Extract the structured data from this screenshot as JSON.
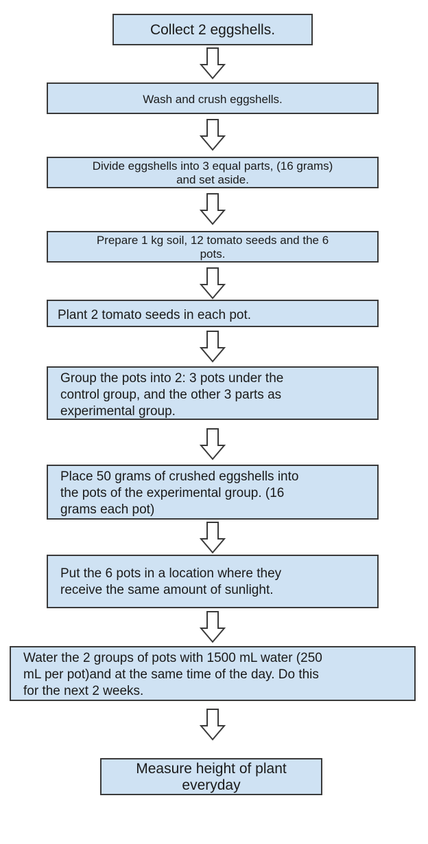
{
  "flowchart": {
    "steps": [
      "Collect 2 eggshells.",
      "Wash and crush eggshells.",
      "Divide eggshells into 3 equal parts, (16 grams)\nand set aside.",
      "Prepare 1 kg soil, 12 tomato seeds and the 6\npots.",
      "Plant 2 tomato seeds in each pot.",
      "Group the pots into 2: 3 pots under the\ncontrol group, and the other 3 parts as\nexperimental group.",
      "Place 50 grams of crushed eggshells into\nthe pots of the experimental group. (16\ngrams each pot)",
      "Put the 6 pots in a location where they\nreceive the same amount of sunlight.",
      "Water the 2 groups of pots with 1500 mL water (250\nmL per pot)and at  the same time of the day. Do this\nfor the next 2 weeks.",
      "Measure height of plant\neveryday"
    ]
  },
  "colors": {
    "box_fill": "#cfe2f3",
    "box_border": "#3a3a3a",
    "arrow_fill": "#ffffff",
    "arrow_stroke": "#3a3a3a"
  }
}
